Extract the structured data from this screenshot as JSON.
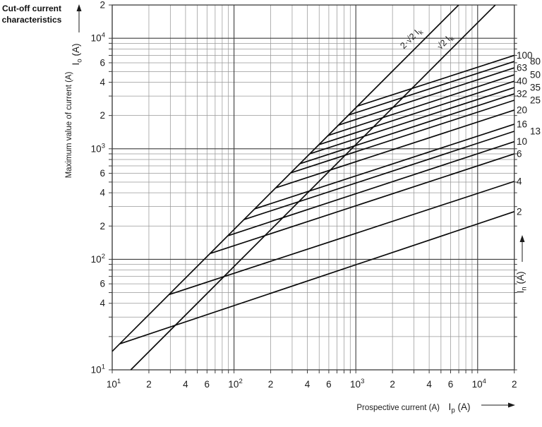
{
  "header": {
    "title": "Cut-off current characteristics"
  },
  "chart_data": {
    "type": "line",
    "scale": "log-log",
    "grid": "on",
    "x_axis": {
      "title": "Prospective current (A)",
      "symbol_base": "I",
      "symbol_sub": "p",
      "symbol_unit": "(A)",
      "range": [
        10,
        20000
      ],
      "ticks": [
        {
          "v": 10,
          "t": "10",
          "sup": "1"
        },
        {
          "v": 20,
          "t": "2"
        },
        {
          "v": 40,
          "t": "4"
        },
        {
          "v": 60,
          "t": "6"
        },
        {
          "v": 100,
          "t": "10",
          "sup": "2"
        },
        {
          "v": 200,
          "t": "2"
        },
        {
          "v": 400,
          "t": "4"
        },
        {
          "v": 600,
          "t": "6"
        },
        {
          "v": 1000,
          "t": "10",
          "sup": "3"
        },
        {
          "v": 2000,
          "t": "2"
        },
        {
          "v": 4000,
          "t": "4"
        },
        {
          "v": 6000,
          "t": "6"
        },
        {
          "v": 10000,
          "t": "10",
          "sup": "4"
        },
        {
          "v": 20000,
          "t": "2"
        }
      ]
    },
    "y_axis": {
      "title": "Maximum value of current (A)",
      "symbol_base": "I",
      "symbol_sub": "o",
      "symbol_unit": "(A)",
      "range": [
        10,
        20000
      ],
      "ticks": [
        {
          "v": 20000,
          "t": "2"
        },
        {
          "v": 10000,
          "t": "10",
          "sup": "4"
        },
        {
          "v": 6000,
          "t": "6"
        },
        {
          "v": 4000,
          "t": "4"
        },
        {
          "v": 2000,
          "t": "2"
        },
        {
          "v": 1000,
          "t": "10",
          "sup": "3"
        },
        {
          "v": 600,
          "t": "6"
        },
        {
          "v": 400,
          "t": "4"
        },
        {
          "v": 200,
          "t": "2"
        },
        {
          "v": 100,
          "t": "10",
          "sup": "2"
        },
        {
          "v": 60,
          "t": "6"
        },
        {
          "v": 40,
          "t": "4"
        },
        {
          "v": 10,
          "t": "10",
          "sup": "1"
        }
      ]
    },
    "right_axis": {
      "symbol_base": "I",
      "symbol_sub": "n",
      "symbol_unit": "(A)"
    },
    "reference_lines": [
      {
        "id": "2sqrt2",
        "label": "2·√2 I",
        "label_sub": "k",
        "from": [
          10,
          14.7
        ],
        "to": [
          6980,
          20000
        ],
        "label_at": [
          2940,
          9600
        ]
      },
      {
        "id": "sqrt2",
        "label": "√2 I",
        "label_sub": "k",
        "from": [
          14.2,
          10
        ],
        "to": [
          13970,
          20000
        ],
        "label_at": [
          5570,
          8900
        ]
      }
    ],
    "series": [
      {
        "rating": "100",
        "branch": [
          1040,
          2440
        ],
        "end": [
          20000,
          7000
        ],
        "label_col": 1
      },
      {
        "rating": "80",
        "branch": [
          873,
          2020
        ],
        "end": [
          20000,
          6170
        ],
        "label_col": 2
      },
      {
        "rating": "63",
        "branch": [
          724,
          1640
        ],
        "end": [
          20000,
          5400
        ],
        "label_col": 1
      },
      {
        "rating": "50",
        "branch": [
          593,
          1320
        ],
        "end": [
          20000,
          4670
        ],
        "label_col": 2
      },
      {
        "rating": "40",
        "branch": [
          499,
          1090
        ],
        "end": [
          20000,
          4090
        ],
        "label_col": 1
      },
      {
        "rating": "35",
        "branch": [
          419,
          900
        ],
        "end": [
          20000,
          3580
        ],
        "label_col": 2
      },
      {
        "rating": "32",
        "branch": [
          348,
          733
        ],
        "end": [
          20000,
          3140
        ],
        "label_col": 1
      },
      {
        "rating": "25",
        "branch": [
          292,
          605
        ],
        "end": [
          20000,
          2750
        ],
        "label_col": 2
      },
      {
        "rating": "20",
        "branch": [
          221,
          444
        ],
        "end": [
          20000,
          2240
        ],
        "label_col": 1
      },
      {
        "rating": "16",
        "branch": [
          148,
          286
        ],
        "end": [
          20000,
          1670
        ],
        "label_col": 1
      },
      {
        "rating": "13",
        "branch": [
          121,
          229
        ],
        "end": [
          20000,
          1440
        ],
        "label_col": 2
      },
      {
        "rating": "10",
        "branch": [
          90,
          164
        ],
        "end": [
          20000,
          1160
        ],
        "label_col": 1
      },
      {
        "rating": "6",
        "branch": [
          64,
          113
        ],
        "end": [
          20000,
          900
        ],
        "label_col": 1
      },
      {
        "rating": "4",
        "branch": [
          29.4,
          48
        ],
        "end": [
          20000,
          507
        ],
        "label_col": 1
      },
      {
        "rating": "2",
        "branch": [
          11.6,
          17.2
        ],
        "end": [
          20000,
          270
        ],
        "label_col": 1
      }
    ],
    "colors": {
      "curve": "#0a0a0a",
      "grid_minor": "#999999",
      "grid_decade": "#3c3c3c",
      "text": "#1b1b1b"
    }
  }
}
